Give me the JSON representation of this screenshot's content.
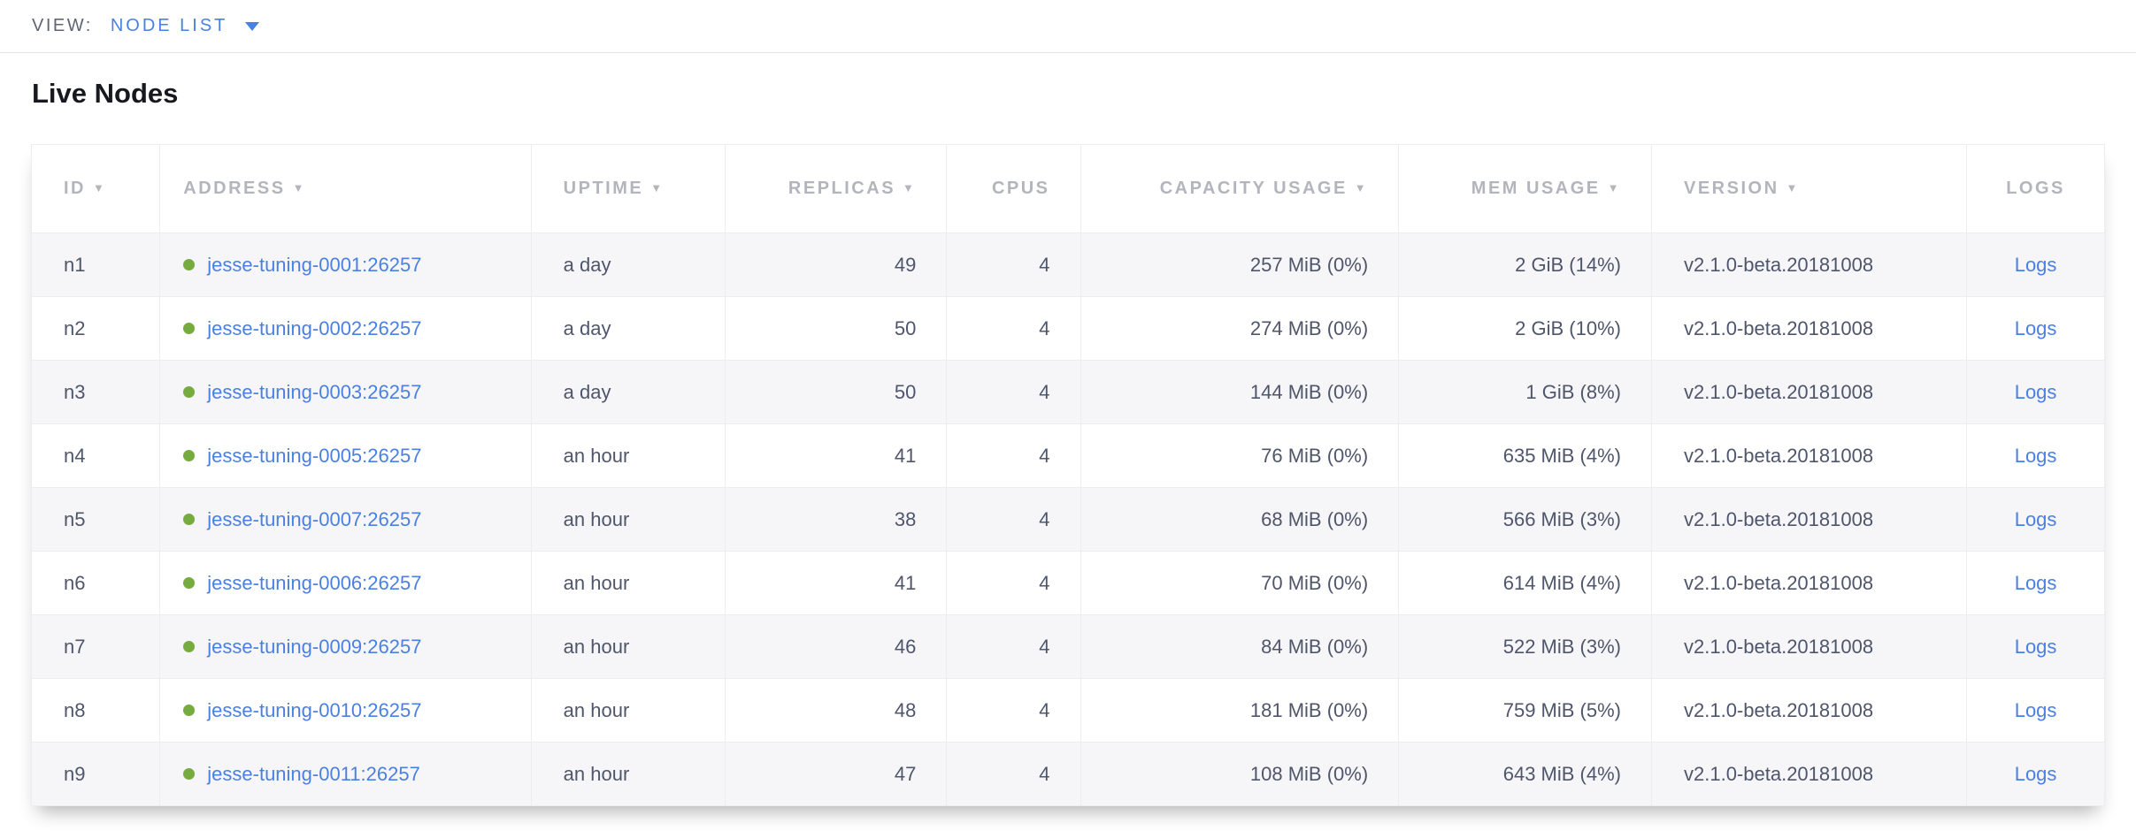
{
  "topbar": {
    "view_label": "VIEW:",
    "selected_view": "NODE LIST"
  },
  "page": {
    "title": "Live Nodes"
  },
  "colors": {
    "link_blue": "#4a80e1",
    "healthy_green": "#76ab3f",
    "header_gray": "#b2b5bc",
    "cell_text": "#4f566b"
  },
  "table": {
    "sort_icon": "▼",
    "columns": [
      {
        "key": "id",
        "label": "ID",
        "sortable": true,
        "align": "left"
      },
      {
        "key": "address",
        "label": "ADDRESS",
        "sortable": true,
        "align": "left"
      },
      {
        "key": "uptime",
        "label": "UPTIME",
        "sortable": true,
        "align": "left"
      },
      {
        "key": "replicas",
        "label": "REPLICAS",
        "sortable": true,
        "align": "right"
      },
      {
        "key": "cpus",
        "label": "CPUS",
        "sortable": false,
        "align": "right"
      },
      {
        "key": "capacity_usage",
        "label": "CAPACITY USAGE",
        "sortable": true,
        "align": "right"
      },
      {
        "key": "mem_usage",
        "label": "MEM USAGE",
        "sortable": true,
        "align": "right"
      },
      {
        "key": "version",
        "label": "VERSION",
        "sortable": true,
        "align": "left"
      },
      {
        "key": "logs",
        "label": "LOGS",
        "sortable": false,
        "align": "center"
      }
    ],
    "rows": [
      {
        "id": "n1",
        "status": "healthy",
        "address": "jesse-tuning-0001:26257",
        "uptime": "a day",
        "replicas": "49",
        "cpus": "4",
        "capacity_usage": "257 MiB (0%)",
        "mem_usage": "2 GiB (14%)",
        "version": "v2.1.0-beta.20181008",
        "logs_label": "Logs"
      },
      {
        "id": "n2",
        "status": "healthy",
        "address": "jesse-tuning-0002:26257",
        "uptime": "a day",
        "replicas": "50",
        "cpus": "4",
        "capacity_usage": "274 MiB (0%)",
        "mem_usage": "2 GiB (10%)",
        "version": "v2.1.0-beta.20181008",
        "logs_label": "Logs"
      },
      {
        "id": "n3",
        "status": "healthy",
        "address": "jesse-tuning-0003:26257",
        "uptime": "a day",
        "replicas": "50",
        "cpus": "4",
        "capacity_usage": "144 MiB (0%)",
        "mem_usage": "1 GiB (8%)",
        "version": "v2.1.0-beta.20181008",
        "logs_label": "Logs"
      },
      {
        "id": "n4",
        "status": "healthy",
        "address": "jesse-tuning-0005:26257",
        "uptime": "an hour",
        "replicas": "41",
        "cpus": "4",
        "capacity_usage": "76 MiB (0%)",
        "mem_usage": "635 MiB (4%)",
        "version": "v2.1.0-beta.20181008",
        "logs_label": "Logs"
      },
      {
        "id": "n5",
        "status": "healthy",
        "address": "jesse-tuning-0007:26257",
        "uptime": "an hour",
        "replicas": "38",
        "cpus": "4",
        "capacity_usage": "68 MiB (0%)",
        "mem_usage": "566 MiB (3%)",
        "version": "v2.1.0-beta.20181008",
        "logs_label": "Logs"
      },
      {
        "id": "n6",
        "status": "healthy",
        "address": "jesse-tuning-0006:26257",
        "uptime": "an hour",
        "replicas": "41",
        "cpus": "4",
        "capacity_usage": "70 MiB (0%)",
        "mem_usage": "614 MiB (4%)",
        "version": "v2.1.0-beta.20181008",
        "logs_label": "Logs"
      },
      {
        "id": "n7",
        "status": "healthy",
        "address": "jesse-tuning-0009:26257",
        "uptime": "an hour",
        "replicas": "46",
        "cpus": "4",
        "capacity_usage": "84 MiB (0%)",
        "mem_usage": "522 MiB (3%)",
        "version": "v2.1.0-beta.20181008",
        "logs_label": "Logs"
      },
      {
        "id": "n8",
        "status": "healthy",
        "address": "jesse-tuning-0010:26257",
        "uptime": "an hour",
        "replicas": "48",
        "cpus": "4",
        "capacity_usage": "181 MiB (0%)",
        "mem_usage": "759 MiB (5%)",
        "version": "v2.1.0-beta.20181008",
        "logs_label": "Logs"
      },
      {
        "id": "n9",
        "status": "healthy",
        "address": "jesse-tuning-0011:26257",
        "uptime": "an hour",
        "replicas": "47",
        "cpus": "4",
        "capacity_usage": "108 MiB (0%)",
        "mem_usage": "643 MiB (4%)",
        "version": "v2.1.0-beta.20181008",
        "logs_label": "Logs"
      }
    ]
  }
}
